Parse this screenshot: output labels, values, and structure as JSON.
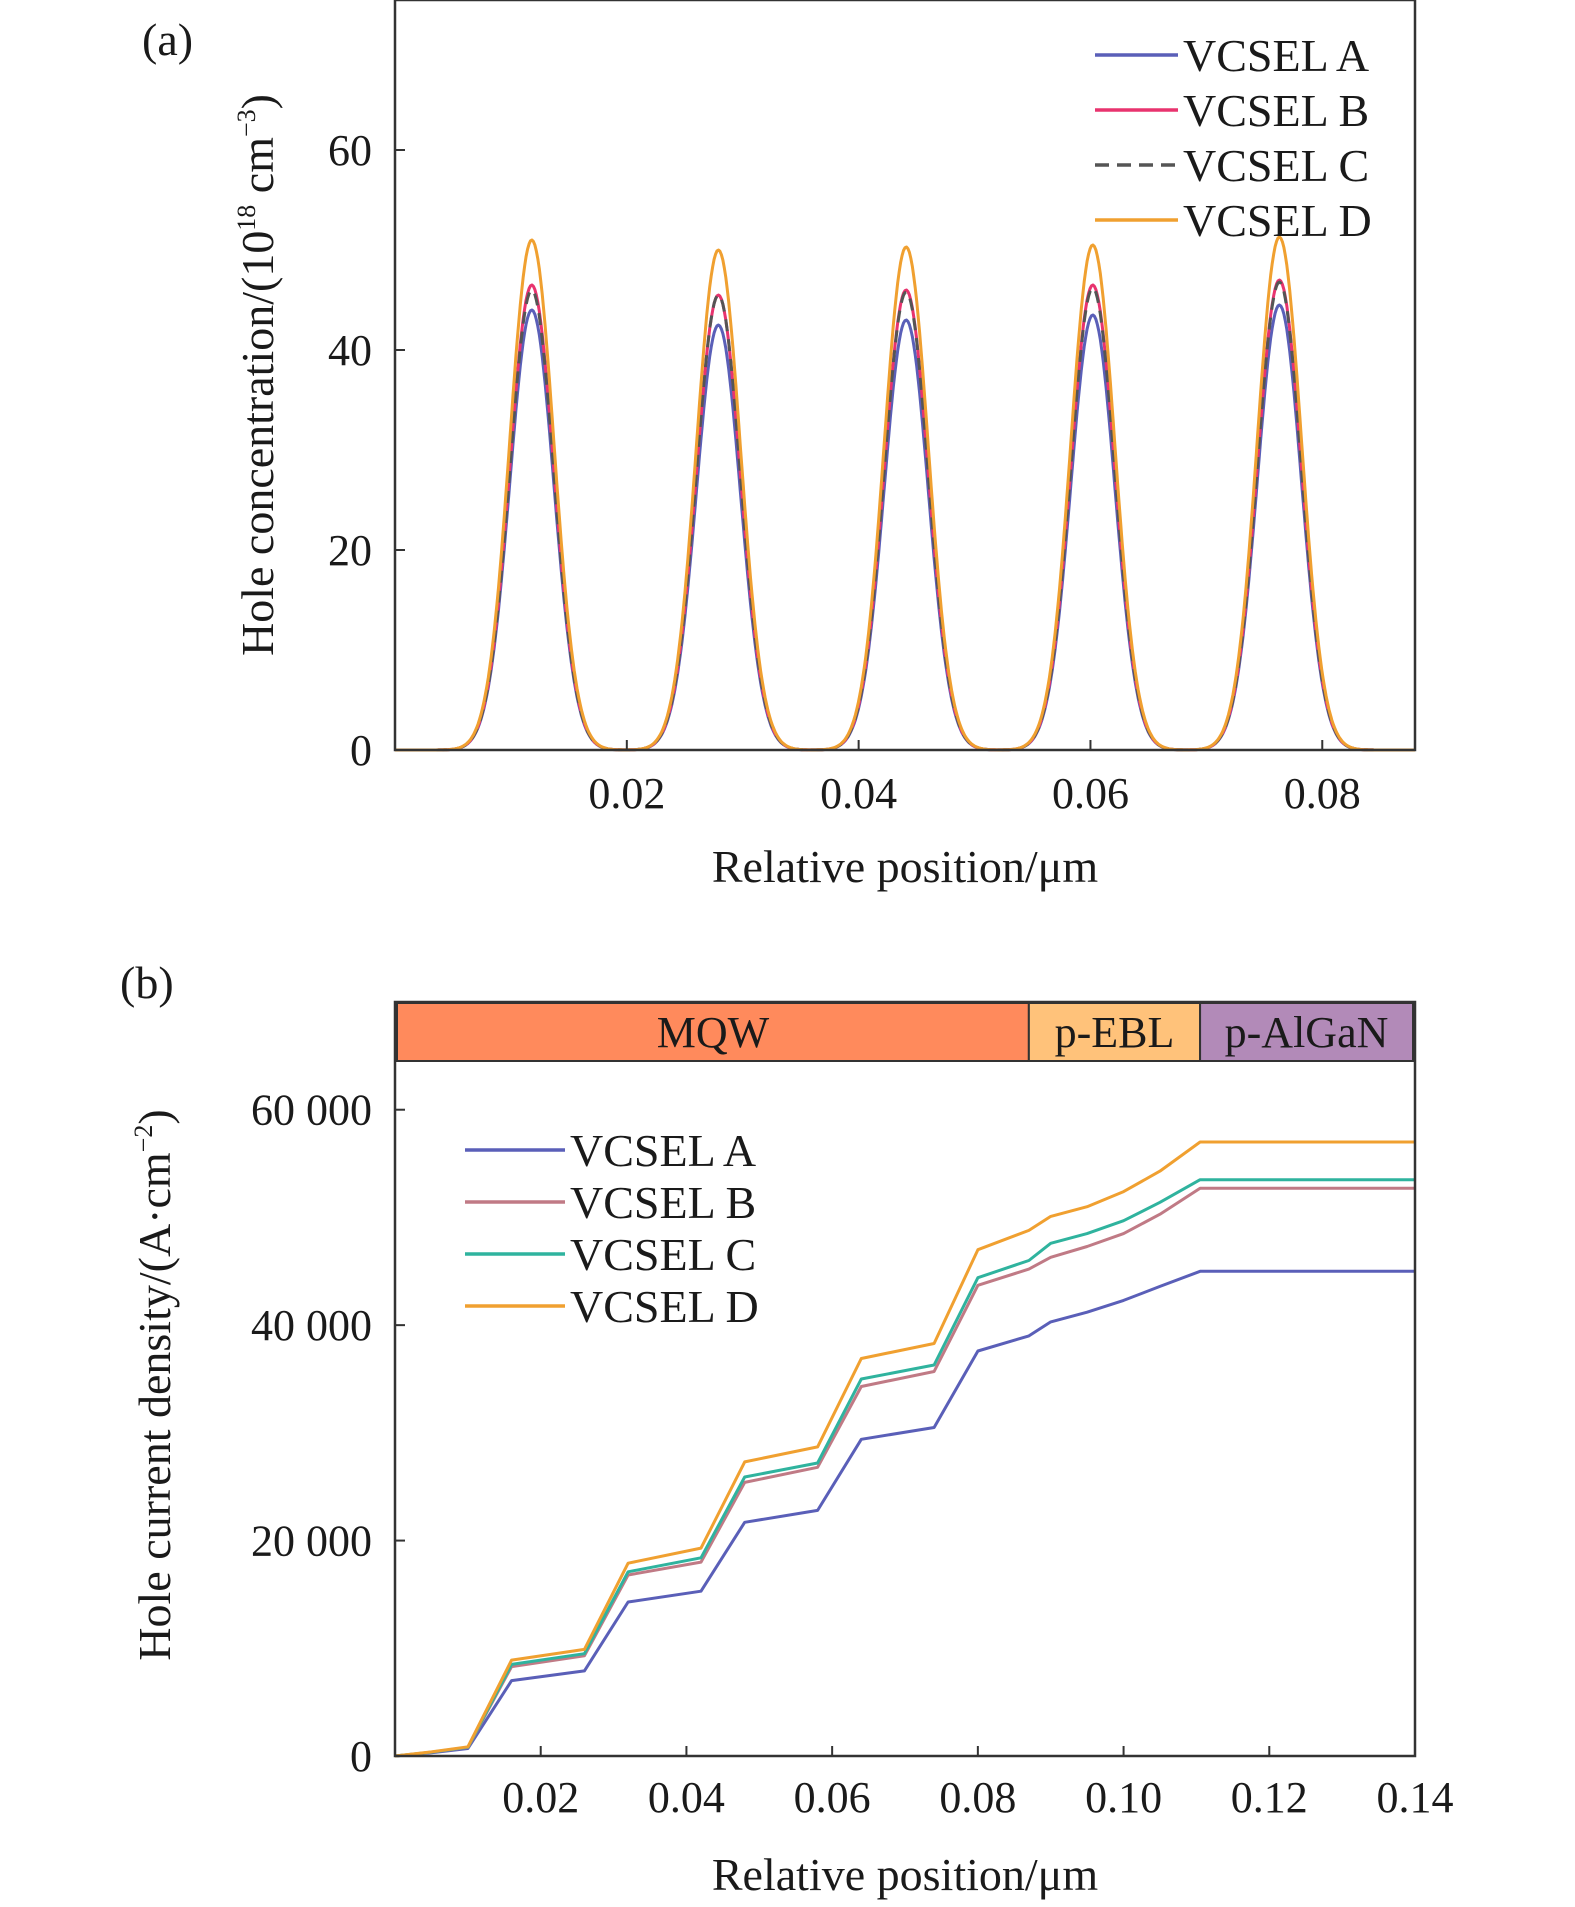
{
  "chart_data": [
    {
      "panel_label": "(a)",
      "type": "line",
      "title": "",
      "xlabel": "Relative position/μm",
      "ylabel_base": "Hole concentration/(10",
      "ylabel_sup1": "18",
      "ylabel_mid": " cm",
      "ylabel_sup2": "−3",
      "ylabel_end": ")",
      "xlim": [
        0.0,
        0.088
      ],
      "ylim": [
        0,
        75
      ],
      "xticks": [
        0.02,
        0.04,
        0.06,
        0.08
      ],
      "xtick_labels": [
        "0.02",
        "0.04",
        "0.06",
        "0.08"
      ],
      "yticks": [
        0,
        20,
        40,
        60
      ],
      "ytick_labels": [
        "0",
        "20",
        "40",
        "60"
      ],
      "grid": false,
      "legend_position": "top-right",
      "peak_centers": [
        0.0118,
        0.0279,
        0.0441,
        0.0602,
        0.0763
      ],
      "peak_sigma": 0.0019,
      "series": [
        {
          "name": "VCSEL A",
          "color": "#5a5fb8",
          "dash": "solid",
          "peaks": [
            44,
            42.5,
            43,
            43.5,
            44.5
          ]
        },
        {
          "name": "VCSEL B",
          "color": "#e8336e",
          "dash": "solid",
          "peaks": [
            46.5,
            45.5,
            46,
            46.5,
            47
          ]
        },
        {
          "name": "VCSEL C",
          "color": "#555555",
          "dash": "dashed",
          "peaks": [
            46,
            45.5,
            45.8,
            46.2,
            46.8
          ]
        },
        {
          "name": "VCSEL D",
          "color": "#f0a030",
          "dash": "solid",
          "peaks": [
            51,
            50,
            50.3,
            50.5,
            51.3
          ]
        }
      ]
    },
    {
      "panel_label": "(b)",
      "type": "line",
      "title": "",
      "xlabel": "Relative position/μm",
      "ylabel_base": "Hole current density/(A·cm",
      "ylabel_sup": "−2",
      "ylabel_end": ")",
      "xlim": [
        0.0,
        0.14
      ],
      "ylim": [
        0,
        70000
      ],
      "xticks": [
        0.02,
        0.04,
        0.06,
        0.08,
        0.1,
        0.12,
        0.14
      ],
      "xtick_labels": [
        "0.02",
        "0.04",
        "0.06",
        "0.08",
        "0.10",
        "0.12",
        "0.14"
      ],
      "yticks": [
        0,
        20000,
        40000,
        60000
      ],
      "ytick_labels": [
        "0",
        "20 000",
        "40 000",
        "60 000"
      ],
      "grid": false,
      "legend_position": "upper-left",
      "regions": [
        {
          "label": "MQW",
          "x0": 0.0,
          "x1": 0.087,
          "color": "#ff8a5c"
        },
        {
          "label": "p-EBL",
          "x0": 0.087,
          "x1": 0.1105,
          "color": "#ffc27a"
        },
        {
          "label": "p-AlGaN",
          "x0": 0.1105,
          "x1": 0.14,
          "color": "#b28ab8"
        }
      ],
      "x": [
        0.0,
        0.005,
        0.01,
        0.016,
        0.026,
        0.032,
        0.042,
        0.048,
        0.058,
        0.064,
        0.074,
        0.08,
        0.087,
        0.09,
        0.095,
        0.1,
        0.105,
        0.1105,
        0.14
      ],
      "series": [
        {
          "name": "VCSEL A",
          "color": "#5a5fb8",
          "values": [
            0,
            300,
            700,
            7000,
            7900,
            14300,
            15300,
            21700,
            22800,
            29400,
            30500,
            37600,
            39000,
            40300,
            41200,
            42300,
            43600,
            45000,
            45000
          ]
        },
        {
          "name": "VCSEL B",
          "color": "#c07a85",
          "values": [
            0,
            350,
            800,
            8300,
            9300,
            16800,
            18000,
            25400,
            26800,
            34300,
            35700,
            43700,
            45200,
            46300,
            47300,
            48500,
            50300,
            52700,
            52700
          ]
        },
        {
          "name": "VCSEL C",
          "color": "#2fb39e",
          "values": [
            0,
            360,
            820,
            8500,
            9500,
            17100,
            18400,
            25900,
            27200,
            35000,
            36300,
            44400,
            46000,
            47600,
            48500,
            49700,
            51400,
            53500,
            53500
          ]
        },
        {
          "name": "VCSEL D",
          "color": "#f0a030",
          "values": [
            0,
            380,
            850,
            8900,
            9900,
            17900,
            19300,
            27300,
            28700,
            36900,
            38300,
            47000,
            48800,
            50100,
            51000,
            52400,
            54300,
            57000,
            57000
          ]
        }
      ]
    }
  ]
}
